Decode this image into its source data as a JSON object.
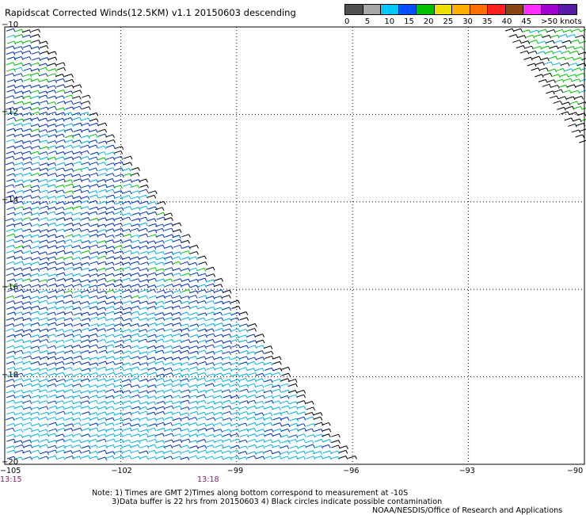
{
  "title": "Rapidscat Corrected Winds(12.5KM) v1.1 20150603 descending",
  "legend": {
    "colors": [
      "#505050",
      "#a8a8a8",
      "#00c8ff",
      "#0050ff",
      "#00c000",
      "#f0e000",
      "#ffb000",
      "#ff7000",
      "#ff2020",
      "#8b4513",
      "#ff30ff",
      "#a000d0",
      "#5a1aa8"
    ],
    "labels": [
      "0",
      "5",
      "10",
      "15",
      "20",
      "25",
      "30",
      "35",
      "40",
      "45",
      ">50 knots"
    ]
  },
  "map": {
    "lon_range": [
      -105,
      -90
    ],
    "lat_range": [
      -20,
      -10
    ],
    "lon_ticks": [
      "-105",
      "-102",
      "-99",
      "-96",
      "-93",
      "-90"
    ],
    "lat_ticks": [
      "-10",
      "-12",
      "-14",
      "-16",
      "-18",
      "-20"
    ],
    "times": [
      "13:15",
      "13:18"
    ],
    "barb_colors": {
      "low": "#00b0e0",
      "mid": "#0030c0",
      "high": "#00c000",
      "edge": "#000000"
    }
  },
  "notes": {
    "line1": "Note: 1) Times are GMT 2)Times along bottom correspond to measurement at -10S",
    "line2": "3)Data buffer is 22 hrs from 20150603 4) Black circles indicate possible contamination",
    "line3": "NOAA/NESDIS/Office of Research and Applications"
  }
}
